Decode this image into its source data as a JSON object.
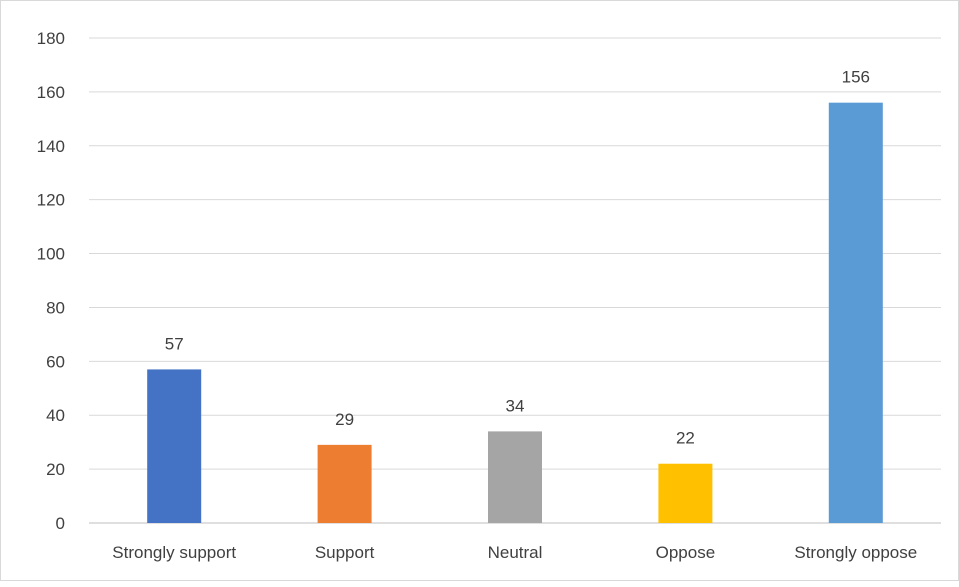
{
  "chart_data": {
    "type": "bar",
    "categories": [
      "Strongly support",
      "Support",
      "Neutral",
      "Oppose",
      "Strongly oppose"
    ],
    "values": [
      57,
      29,
      34,
      22,
      156
    ],
    "colors": [
      "#4472C4",
      "#ED7D31",
      "#A5A5A5",
      "#FFC000",
      "#5B9BD5"
    ],
    "ylim": [
      0,
      180
    ],
    "yticks": [
      0,
      20,
      40,
      60,
      80,
      100,
      120,
      140,
      160,
      180
    ],
    "data_labels": true,
    "grid": true,
    "legend": "none",
    "title": "",
    "xlabel": "",
    "ylabel": ""
  }
}
